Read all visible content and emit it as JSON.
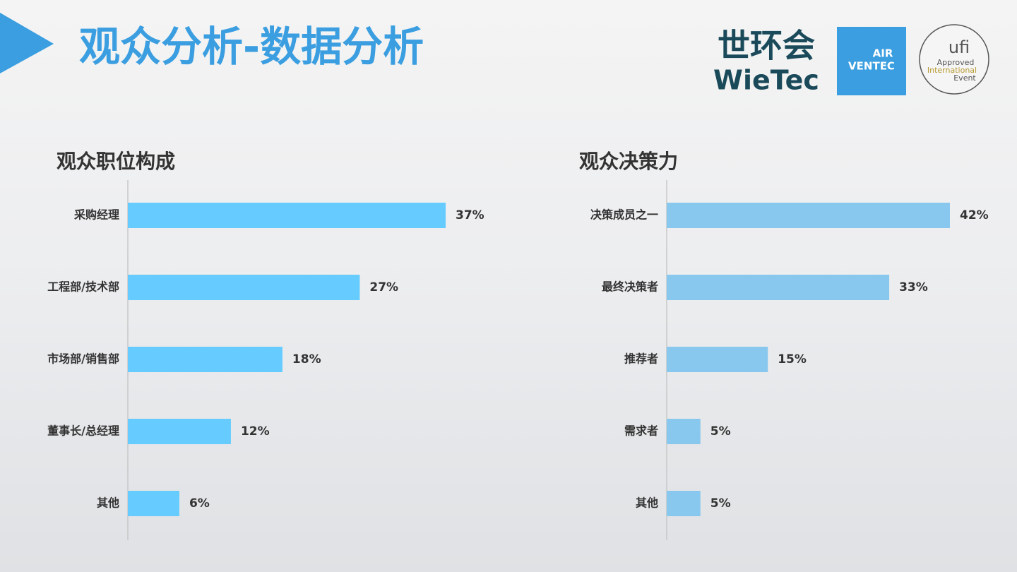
{
  "header": {
    "title": "观众分析-数据分析"
  },
  "logos": {
    "wietec_cn": "世环会",
    "wietec_en": "WieTec",
    "airventec_1": "AIR",
    "airventec_2": "VENTEC",
    "ufi_1": "ufi",
    "ufi_2": "Approved",
    "ufi_3": "International",
    "ufi_4": "Event"
  },
  "chart_data": [
    {
      "type": "bar",
      "orientation": "horizontal",
      "title": "观众职位构成",
      "categories": [
        "采购经理",
        "工程部/技术部",
        "市场部/销售部",
        "董事长/总经理",
        "其他"
      ],
      "values": [
        37,
        27,
        18,
        12,
        6
      ],
      "value_labels": [
        "37%",
        "27%",
        "18%",
        "12%",
        "6%"
      ],
      "color": "#66ccff"
    },
    {
      "type": "bar",
      "orientation": "horizontal",
      "title": "观众决策力",
      "categories": [
        "决策成员之一",
        "最终决策者",
        "推荐者",
        "需求者",
        "其他"
      ],
      "values": [
        42,
        33,
        15,
        5,
        5
      ],
      "value_labels": [
        "42%",
        "33%",
        "15%",
        "5%",
        "5%"
      ],
      "color": "#88c8ee"
    }
  ]
}
